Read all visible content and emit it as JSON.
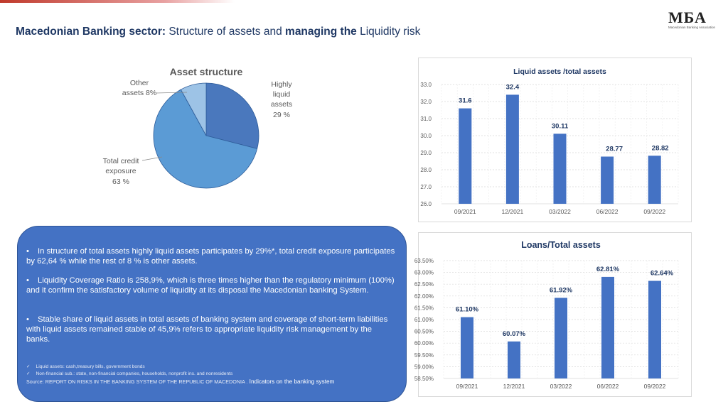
{
  "header": {
    "title_part1": "Macedonian Banking sector:",
    "title_part2": " Structure of assets and ",
    "title_part3": "managing the",
    "title_part4": " Liquidity risk"
  },
  "logo": {
    "mark": "МБА",
    "subtitle": "Macedonian Banking Association"
  },
  "pie_chart": {
    "title": "Asset structure",
    "labels": {
      "other_line1": "Other",
      "other_line2": "assets 8%",
      "liquid_line1": "Highly",
      "liquid_line2": "liquid",
      "liquid_line3": "assets",
      "liquid_line4": "29 %",
      "credit_line1": "Total credit",
      "credit_line2": "exposure",
      "credit_line3": "63 %"
    }
  },
  "chart_data": [
    {
      "type": "pie",
      "title": "Asset structure",
      "categories": [
        "Highly liquid assets",
        "Total credit exposure",
        "Other assets"
      ],
      "values": [
        29,
        63,
        8
      ],
      "colors": [
        "#4a78bd",
        "#5b9bd5",
        "#9dc3e6"
      ]
    },
    {
      "type": "bar",
      "title": "Liquid assets /total assets",
      "categories": [
        "09/2021",
        "12/2021",
        "03/2022",
        "06/2022",
        "09/2022"
      ],
      "values": [
        31.6,
        32.4,
        30.11,
        28.77,
        28.82
      ],
      "value_labels": [
        "31.6",
        "32.4",
        "30.11",
        "28.77",
        "28.82"
      ],
      "yticks": [
        "26.0",
        "27.0",
        "28.0",
        "29.0",
        "30.0",
        "31.0",
        "32.0",
        "33.0"
      ],
      "ylim": [
        26,
        33
      ],
      "grid": true,
      "bar_color": "#4472c4"
    },
    {
      "type": "bar",
      "title": "Loans/Total assets",
      "categories": [
        "09/2021",
        "12/2021",
        "03/2022",
        "06/2022",
        "09/2022"
      ],
      "values": [
        61.1,
        60.07,
        61.92,
        62.81,
        62.64
      ],
      "value_labels": [
        "61.10%",
        "60.07%",
        "61.92%",
        "62.81%",
        "62.64%"
      ],
      "yticks": [
        "58.50%",
        "59.00%",
        "59.50%",
        "60.00%",
        "60.50%",
        "61.00%",
        "61.50%",
        "62.00%",
        "62.50%",
        "63.00%",
        "63.50%"
      ],
      "ylim": [
        58.5,
        63.5
      ],
      "grid": true,
      "bar_color": "#4472c4"
    }
  ],
  "notes": {
    "bullet1": "In structure of total assets highly liquid assets participates by 29%*, total credit exposure participates by 62,64 % while the rest of 8 % is other assets.",
    "bullet2": "Liquidity Coverage Ratio is 258,9%, which is three times higher than the regulatory minimum (100%) and it confirm the satisfactory volume of liquidity at its disposal the Macedonian banking System.",
    "bullet3": "Stable share of liquid assets in total assets of banking system and coverage of short-term liabilities with liquid assets remained stable of 45,9% refers to appropriate liquidity risk management by the banks.",
    "bullet_symbol": "•",
    "check_symbol": "✓",
    "footnote1": "Liquid assets: cash,treasury bills, government bonds",
    "footnote2": "Non-financial sub.: state, non-financial companies, households, nonprofit ins. and nonresidents",
    "source": "Source: REPORT ON RISKS IN THE BANKING SYSTEM OF THE REPUBLIC OF MACEDONIA .",
    "source_link": " Indicators on the banking system"
  },
  "colors": {
    "accent": "#1f3864",
    "bars": "#4472c4",
    "note_box": "#4472c4",
    "value_label": "#1f3864"
  }
}
